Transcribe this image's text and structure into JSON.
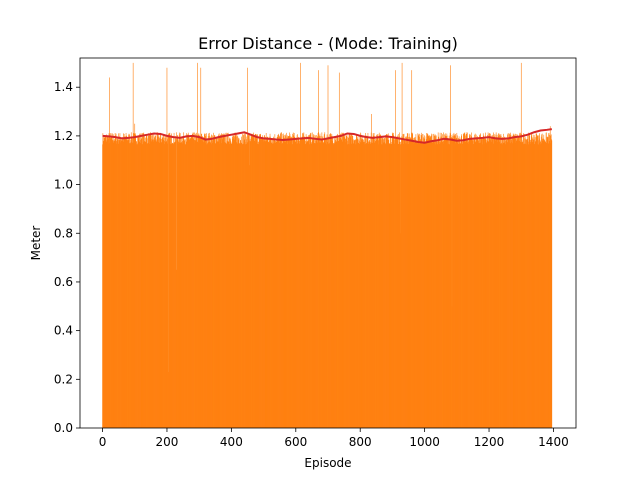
{
  "chart_data": {
    "type": "bar",
    "title": "Error Distance - (Mode: Training)",
    "xlabel": "Episode",
    "ylabel": "Meter",
    "xlim": [
      -70,
      1470
    ],
    "ylim": [
      0,
      1.52
    ],
    "xticks": [
      0,
      200,
      400,
      600,
      800,
      1000,
      1200,
      1400
    ],
    "yticks": [
      0.0,
      0.2,
      0.4,
      0.6,
      0.8,
      1.0,
      1.2,
      1.4
    ],
    "grid": false,
    "colors": {
      "bars": "#ff7f0e",
      "moving_average": "#d62728"
    },
    "series": [
      {
        "type": "bar",
        "x_range": [
          0,
          1395
        ],
        "x_step": 1,
        "typical_value": 1.19,
        "spikes": [
          {
            "x": 22,
            "y": 1.44
          },
          {
            "x": 95,
            "y": 1.5
          },
          {
            "x": 100,
            "y": 1.25
          },
          {
            "x": 200,
            "y": 1.48
          },
          {
            "x": 205,
            "y": 0.23
          },
          {
            "x": 230,
            "y": 0.65
          },
          {
            "x": 295,
            "y": 1.5
          },
          {
            "x": 305,
            "y": 1.48
          },
          {
            "x": 450,
            "y": 1.48
          },
          {
            "x": 455,
            "y": 1.08
          },
          {
            "x": 615,
            "y": 1.5
          },
          {
            "x": 670,
            "y": 1.47
          },
          {
            "x": 700,
            "y": 1.49
          },
          {
            "x": 735,
            "y": 1.46
          },
          {
            "x": 835,
            "y": 1.29
          },
          {
            "x": 910,
            "y": 1.47
          },
          {
            "x": 925,
            "y": 0.8
          },
          {
            "x": 930,
            "y": 1.5
          },
          {
            "x": 960,
            "y": 1.47
          },
          {
            "x": 1080,
            "y": 1.49
          },
          {
            "x": 1085,
            "y": 0.5
          },
          {
            "x": 1300,
            "y": 1.5
          },
          {
            "x": 1390,
            "y": 1.24
          }
        ]
      },
      {
        "type": "line",
        "x": [
          0,
          20,
          40,
          60,
          80,
          100,
          120,
          140,
          160,
          180,
          200,
          220,
          240,
          260,
          280,
          300,
          320,
          340,
          360,
          380,
          400,
          420,
          440,
          460,
          480,
          500,
          520,
          540,
          560,
          580,
          600,
          620,
          640,
          660,
          680,
          700,
          720,
          740,
          760,
          780,
          800,
          820,
          840,
          860,
          880,
          900,
          920,
          940,
          960,
          980,
          1000,
          1020,
          1040,
          1060,
          1080,
          1100,
          1120,
          1140,
          1160,
          1180,
          1200,
          1220,
          1240,
          1260,
          1280,
          1300,
          1320,
          1340,
          1360,
          1380,
          1395
        ],
        "y": [
          1.2,
          1.198,
          1.195,
          1.19,
          1.192,
          1.195,
          1.2,
          1.205,
          1.21,
          1.208,
          1.2,
          1.195,
          1.192,
          1.198,
          1.2,
          1.195,
          1.185,
          1.188,
          1.195,
          1.2,
          1.205,
          1.21,
          1.215,
          1.205,
          1.195,
          1.19,
          1.188,
          1.185,
          1.183,
          1.185,
          1.188,
          1.19,
          1.192,
          1.188,
          1.185,
          1.19,
          1.195,
          1.2,
          1.21,
          1.208,
          1.2,
          1.195,
          1.192,
          1.195,
          1.198,
          1.195,
          1.19,
          1.185,
          1.18,
          1.175,
          1.172,
          1.178,
          1.182,
          1.188,
          1.185,
          1.18,
          1.182,
          1.188,
          1.19,
          1.192,
          1.195,
          1.19,
          1.188,
          1.19,
          1.195,
          1.198,
          1.205,
          1.215,
          1.222,
          1.225,
          1.228
        ]
      }
    ]
  }
}
